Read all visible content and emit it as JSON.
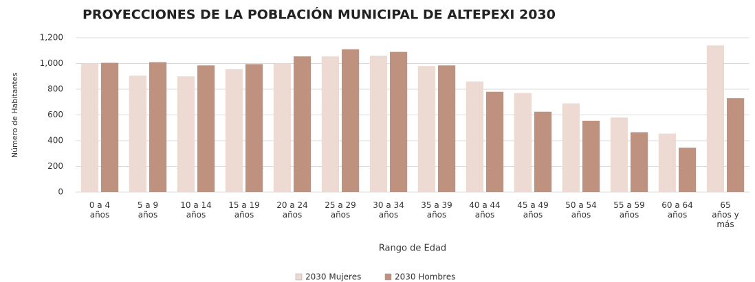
{
  "chart_data": {
    "type": "bar",
    "title": "PROYECCIONES DE LA POBLACIÓN MUNICIPAL DE ALTEPEXI 2030",
    "x_label": "Rango de Edad",
    "y_label": "Número de Habitantes",
    "categories": [
      "0 a 4\naños",
      "5 a 9\naños",
      "10 a 14\naños",
      "15 a 19\naños",
      "20 a 24\naños",
      "25 a 29\naños",
      "30 a 34\naños",
      "35 a 39\naños",
      "40 a 44\naños",
      "45 a 49\naños",
      "50 a 54\naños",
      "55 a 59\naños",
      "60 a 64\naños",
      "65\naños y\nmás"
    ],
    "series": [
      {
        "name": "2030 Mujeres",
        "color": "#ecdad3",
        "values": [
          1000,
          905,
          900,
          955,
          1000,
          1055,
          1060,
          980,
          860,
          770,
          690,
          580,
          455,
          1140
        ]
      },
      {
        "name": "2030 Hombres",
        "color": "#bf917f",
        "values": [
          1005,
          1010,
          985,
          995,
          1055,
          1110,
          1090,
          985,
          780,
          625,
          555,
          465,
          345,
          730
        ]
      }
    ],
    "ylim": [
      0,
      1200
    ],
    "yticks": [
      0,
      200,
      400,
      600,
      800,
      {
        "value": 1000,
        "label": "1,000"
      },
      {
        "value": 1200,
        "label": "1,200"
      }
    ],
    "grid": true,
    "legend": "bottom"
  }
}
